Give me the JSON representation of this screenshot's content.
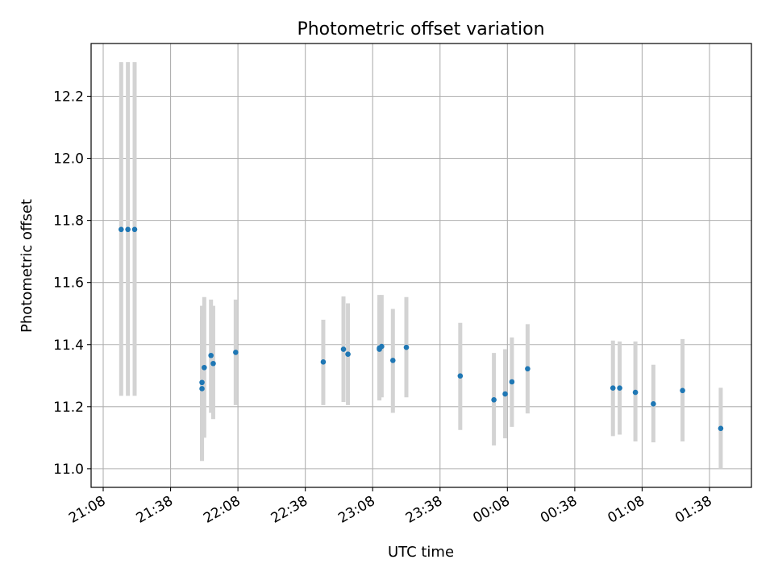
{
  "chart_data": {
    "type": "scatter",
    "title": "Photometric offset variation",
    "xlabel": "UTC time",
    "ylabel": "Photometric offset",
    "x_tick_labels": [
      "21:08",
      "21:38",
      "22:08",
      "22:38",
      "23:08",
      "23:38",
      "00:08",
      "00:38",
      "01:08",
      "01:38"
    ],
    "y_ticks": [
      11.0,
      11.2,
      11.4,
      11.6,
      11.8,
      12.0,
      12.2
    ],
    "ylim": [
      10.94,
      12.37
    ],
    "grid": true,
    "colors": {
      "point": "#1f77b4",
      "errorbar": "#d3d3d3",
      "grid": "#b0b0b0"
    },
    "points": [
      {
        "t": "21:16",
        "y": 11.771,
        "lo": 11.235,
        "hi": 12.31
      },
      {
        "t": "21:19",
        "y": 11.771,
        "lo": 11.235,
        "hi": 12.31
      },
      {
        "t": "21:22",
        "y": 11.771,
        "lo": 11.235,
        "hi": 12.31
      },
      {
        "t": "21:52",
        "y": 11.258,
        "lo": 11.025,
        "hi": 11.49
      },
      {
        "t": "21:52",
        "y": 11.278,
        "lo": 11.03,
        "hi": 11.525
      },
      {
        "t": "21:53",
        "y": 11.326,
        "lo": 11.1,
        "hi": 11.553
      },
      {
        "t": "21:56",
        "y": 11.365,
        "lo": 11.18,
        "hi": 11.545
      },
      {
        "t": "21:57",
        "y": 11.339,
        "lo": 11.16,
        "hi": 11.525
      },
      {
        "t": "22:07",
        "y": 11.375,
        "lo": 11.205,
        "hi": 11.545
      },
      {
        "t": "22:46",
        "y": 11.344,
        "lo": 11.205,
        "hi": 11.48
      },
      {
        "t": "22:55",
        "y": 11.385,
        "lo": 11.215,
        "hi": 11.555
      },
      {
        "t": "22:57",
        "y": 11.369,
        "lo": 11.205,
        "hi": 11.533
      },
      {
        "t": "23:11",
        "y": 11.385,
        "lo": 11.225,
        "hi": 11.535
      },
      {
        "t": "23:11",
        "y": 11.389,
        "lo": 11.22,
        "hi": 11.56
      },
      {
        "t": "23:12",
        "y": 11.394,
        "lo": 11.23,
        "hi": 11.56
      },
      {
        "t": "23:17",
        "y": 11.349,
        "lo": 11.18,
        "hi": 11.515
      },
      {
        "t": "23:23",
        "y": 11.391,
        "lo": 11.23,
        "hi": 11.553
      },
      {
        "t": "23:47",
        "y": 11.299,
        "lo": 11.125,
        "hi": 11.47
      },
      {
        "t": "00:02",
        "y": 11.222,
        "lo": 11.075,
        "hi": 11.373
      },
      {
        "t": "00:07",
        "y": 11.241,
        "lo": 11.098,
        "hi": 11.385
      },
      {
        "t": "00:10",
        "y": 11.28,
        "lo": 11.135,
        "hi": 11.423
      },
      {
        "t": "00:17",
        "y": 11.322,
        "lo": 11.178,
        "hi": 11.466
      },
      {
        "t": "00:55",
        "y": 11.26,
        "lo": 11.105,
        "hi": 11.413
      },
      {
        "t": "00:58",
        "y": 11.26,
        "lo": 11.11,
        "hi": 11.41
      },
      {
        "t": "01:05",
        "y": 11.246,
        "lo": 11.088,
        "hi": 11.41
      },
      {
        "t": "01:13",
        "y": 11.209,
        "lo": 11.085,
        "hi": 11.335
      },
      {
        "t": "01:26",
        "y": 11.252,
        "lo": 11.088,
        "hi": 11.418
      },
      {
        "t": "01:43",
        "y": 11.13,
        "lo": 11.0,
        "hi": 11.261
      }
    ]
  }
}
